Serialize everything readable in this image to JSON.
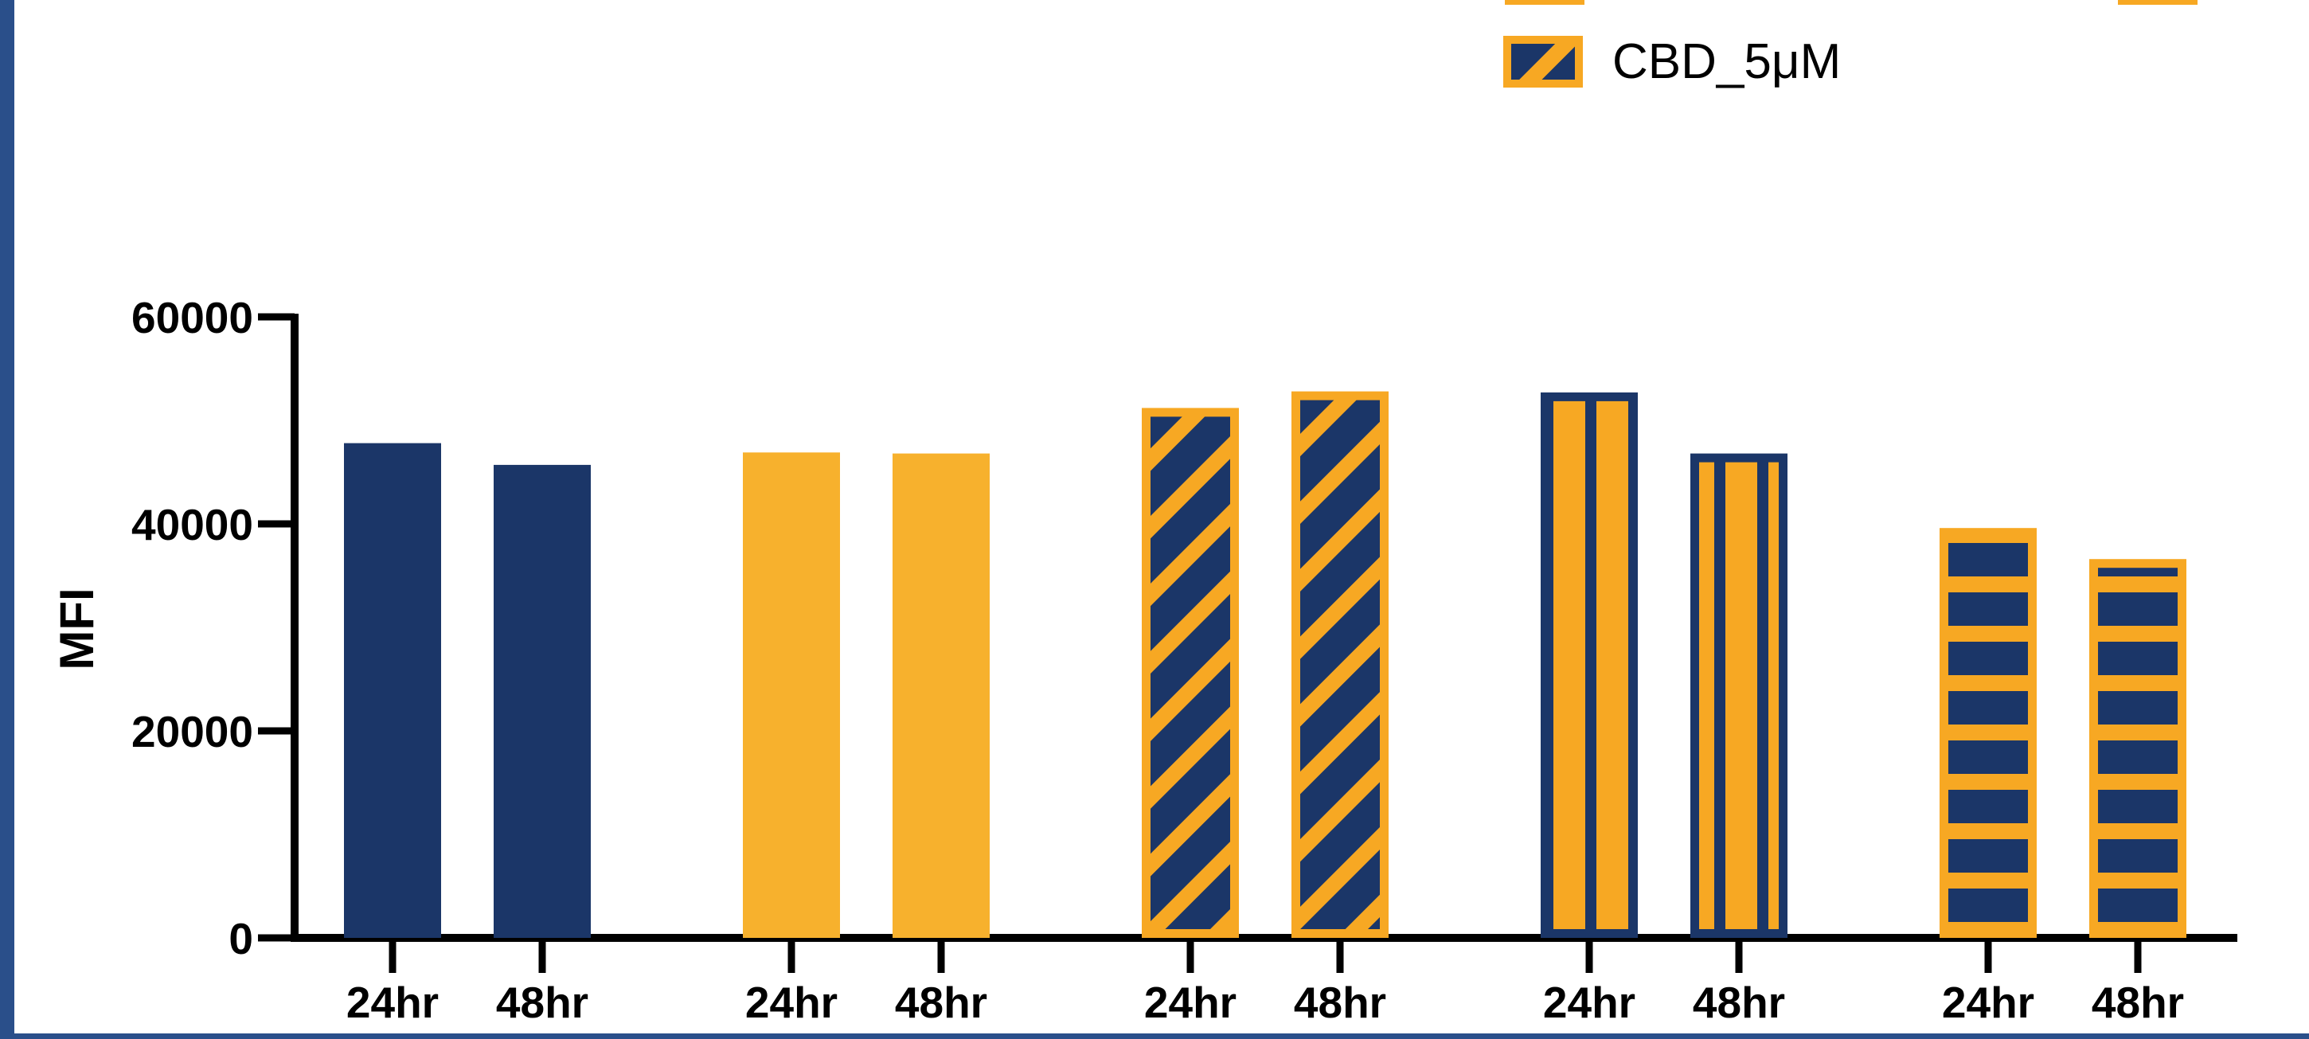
{
  "chart_data": {
    "type": "bar",
    "ylabel": "MFI",
    "ylim": [
      0,
      60000
    ],
    "y_ticks": [
      "0",
      "20000",
      "40000",
      "60000"
    ],
    "groups": [
      {
        "fill": "#1b3668",
        "pattern": "solid",
        "categories": [
          "24hr",
          "48hr"
        ],
        "values": [
          47800,
          45700
        ]
      },
      {
        "fill": "#f7b12d",
        "pattern": "solid",
        "categories": [
          "24hr",
          "48hr"
        ],
        "values": [
          46900,
          46800
        ]
      },
      {
        "name": "CBD_5μM",
        "fill": "#f7a823",
        "pattern": "diagonal",
        "categories": [
          "24hr",
          "48hr"
        ],
        "values": [
          51200,
          52800
        ]
      },
      {
        "fill": "#1b3668",
        "pattern": "vertical",
        "categories": [
          "24hr",
          "48hr"
        ],
        "values": [
          52700,
          46800
        ]
      },
      {
        "fill": "#f7a823",
        "pattern": "horizontal",
        "categories": [
          "24hr",
          "48hr"
        ],
        "values": [
          39600,
          36600
        ]
      }
    ],
    "legend": {
      "placement": "top-right",
      "entries": [
        "CBD_5μM"
      ]
    },
    "grid": false
  },
  "colors": {
    "navy": "#1b3668",
    "orange": "#f7a823",
    "frame": "#2a4f8a"
  }
}
